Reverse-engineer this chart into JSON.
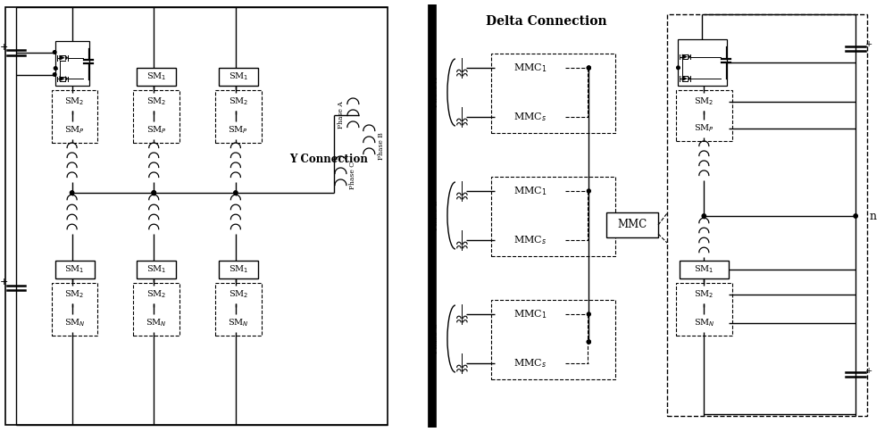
{
  "bg_color": "#ffffff",
  "line_color": "#000000",
  "text_color": "#000000",
  "labels": {
    "y_connection": "Y Connection",
    "delta_connection": "Delta Connection",
    "mmc": "MMC",
    "n_label": "n"
  },
  "figsize": [
    10.0,
    4.84
  ],
  "dpi": 100
}
